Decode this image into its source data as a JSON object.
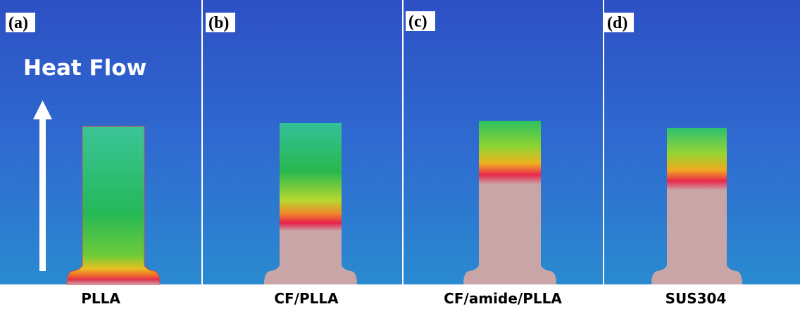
{
  "heat_flow": "Heat Flow",
  "panels": [
    {
      "tag": "(a)",
      "caption": "PLLA"
    },
    {
      "tag": "(b)",
      "caption": "CF/PLLA"
    },
    {
      "tag": "(c)",
      "caption": "CF/amide/PLLA"
    },
    {
      "tag": "(d)",
      "caption": "SUS304"
    }
  ]
}
